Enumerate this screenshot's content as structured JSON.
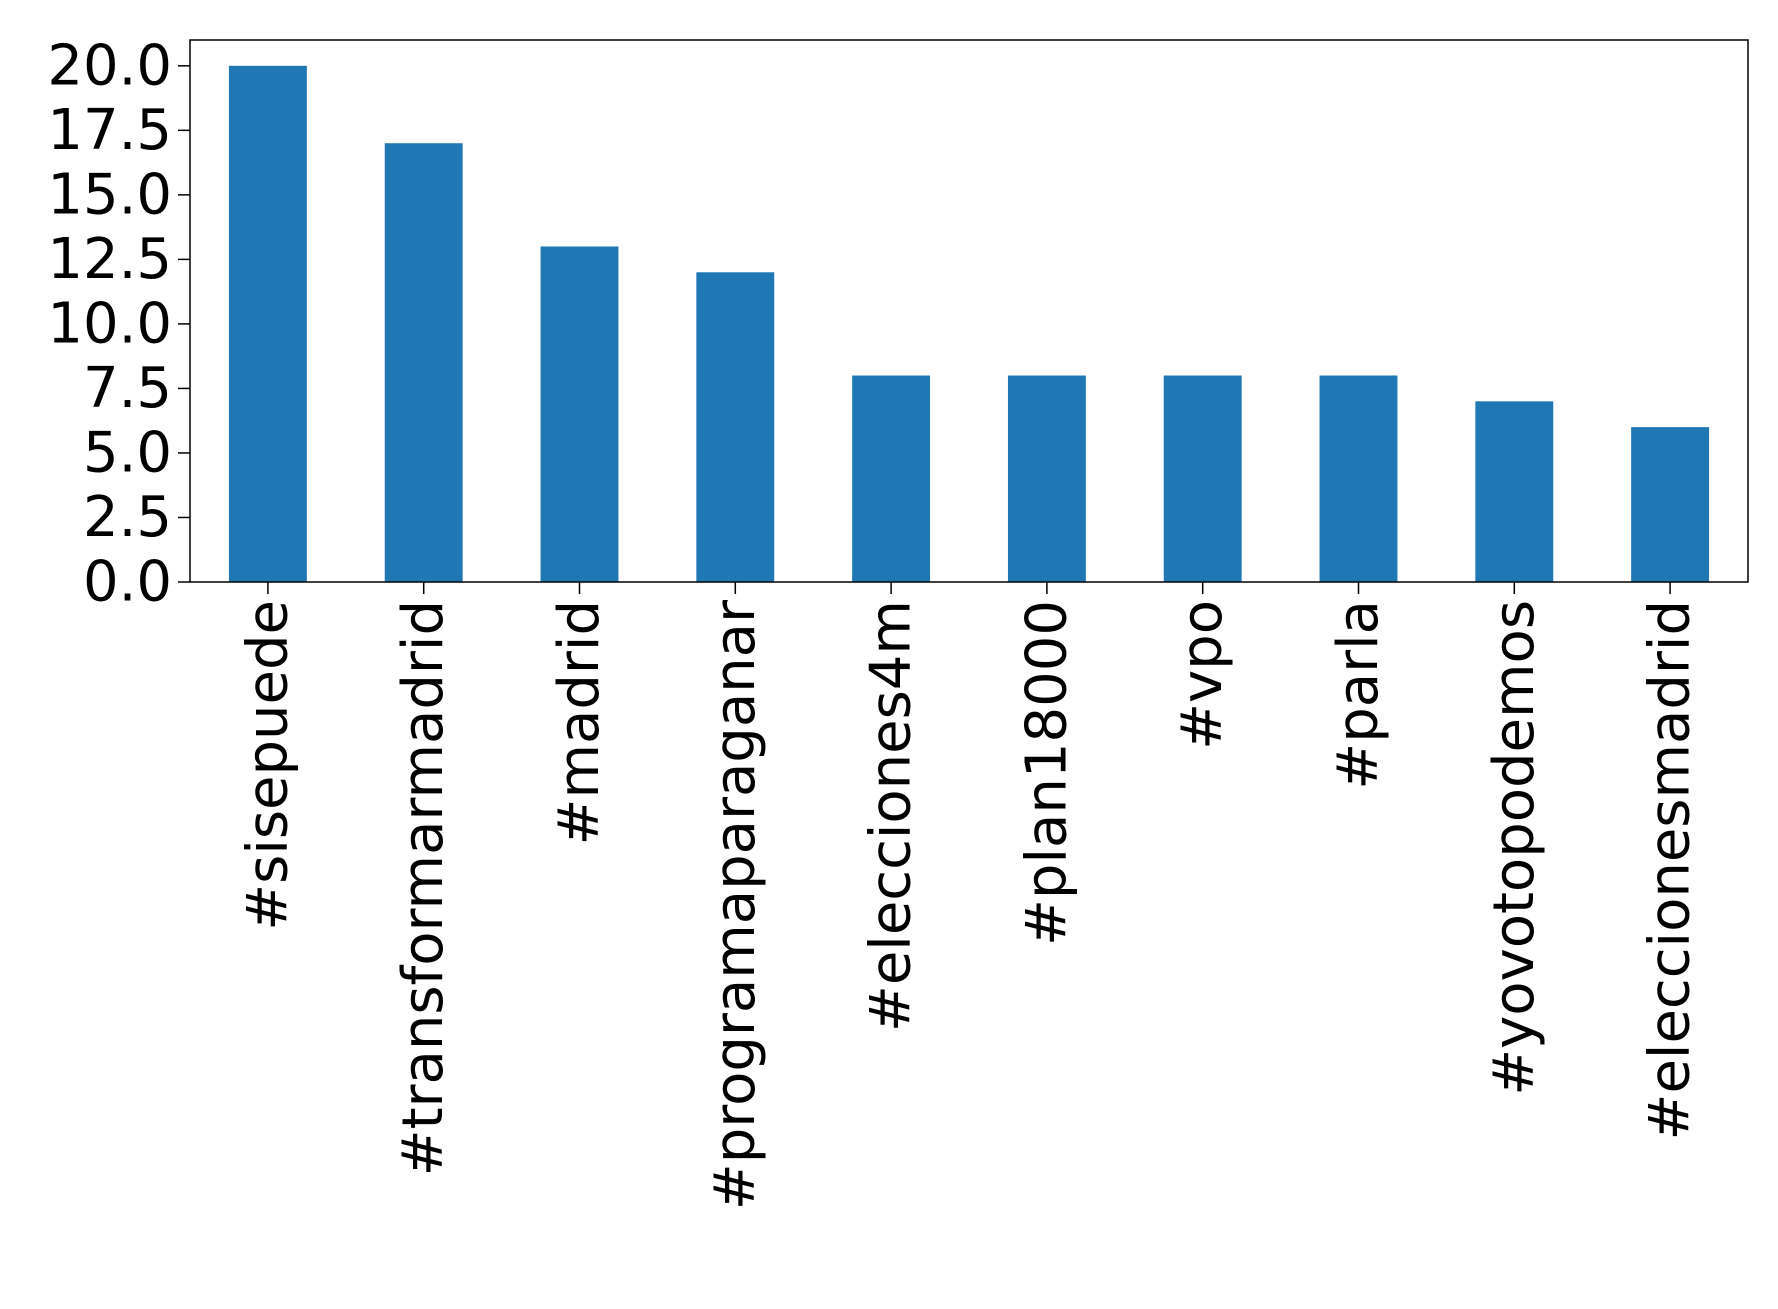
{
  "chart_data": {
    "type": "bar",
    "title": "",
    "xlabel": "",
    "ylabel": "",
    "categories": [
      "#sisepuede",
      "#transformarmadrid",
      "#madrid",
      "#programaparaganar",
      "#elecciones4m",
      "#plan18000",
      "#vpo",
      "#parla",
      "#yovotopodemos",
      "#eleccionesmadrid"
    ],
    "values": [
      20,
      17,
      13,
      12,
      8,
      8,
      8,
      8,
      7,
      6
    ],
    "ylim": [
      0,
      21
    ],
    "yticks": [
      "0.0",
      "2.5",
      "5.0",
      "7.5",
      "10.0",
      "12.5",
      "15.0",
      "17.5",
      "20.0"
    ],
    "grid": false,
    "legend": "none",
    "bar_color": "#1f77b4"
  }
}
